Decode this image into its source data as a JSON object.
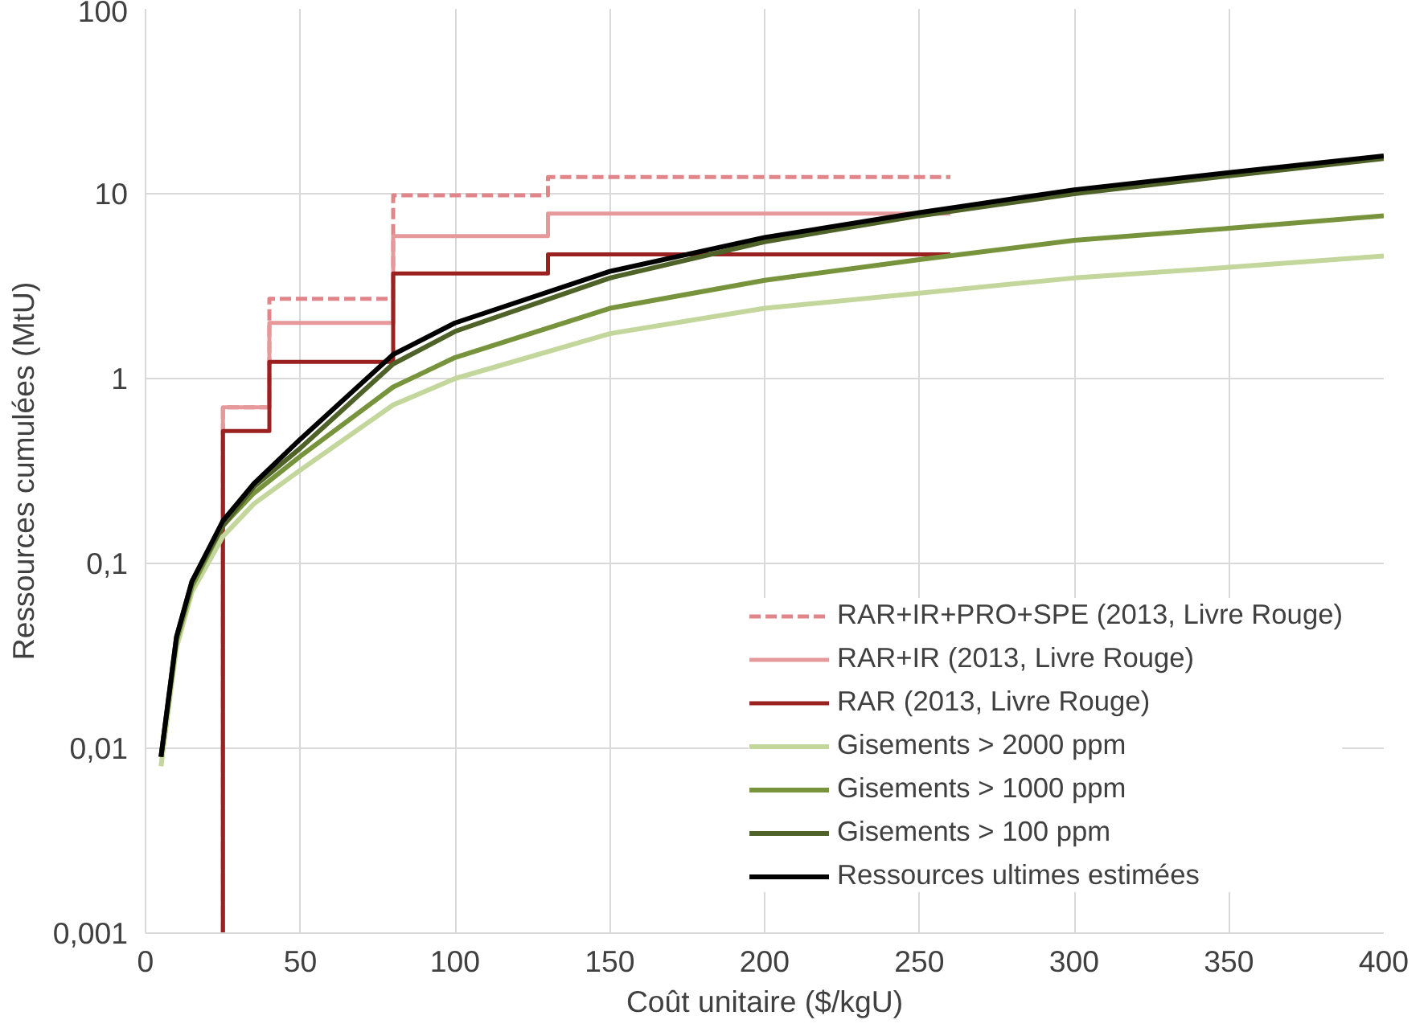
{
  "chart_data": {
    "type": "line",
    "xlabel": "Coût unitaire ($/kgU)",
    "ylabel": "Ressources cumulées (MtU)",
    "log": "y",
    "grid": true,
    "legend": "bottom right",
    "xlim": [
      0,
      400
    ],
    "xticks": [
      0,
      50,
      100,
      150,
      200,
      250,
      300,
      350,
      400
    ],
    "ylim": [
      0.001,
      100
    ],
    "yticks": [
      {
        "value": 0.001,
        "label": "0,001"
      },
      {
        "value": 0.01,
        "label": "0,01"
      },
      {
        "value": 0.1,
        "label": "0,1"
      },
      1,
      10,
      100
    ],
    "series": [
      {
        "name": "RAR+IR+PRO+SPE (2013, Livre Rouge)",
        "type": "step",
        "line_style": "dashed",
        "color": "#e0868a",
        "x": [
          25,
          25,
          40,
          80,
          130,
          260
        ],
        "values": [
          0.001,
          0.7,
          2.7,
          9.8,
          12.3,
          12.3
        ]
      },
      {
        "name": "RAR+IR (2013, Livre Rouge)",
        "type": "step",
        "color": "#e6999b",
        "x": [
          25,
          25,
          40,
          80,
          130,
          260
        ],
        "values": [
          0.001,
          0.7,
          2.0,
          5.9,
          7.8,
          7.8
        ]
      },
      {
        "name": "RAR (2013, Livre Rouge)",
        "type": "step",
        "color": "#9b2020",
        "x": [
          25,
          25,
          40,
          80,
          130,
          260
        ],
        "values": [
          0.001,
          0.52,
          1.23,
          3.7,
          4.7,
          4.7
        ]
      },
      {
        "name": "Gisements > 2000 ppm",
        "color": "#c3d69b",
        "x": [
          5,
          10,
          15,
          25,
          35,
          50,
          80,
          100,
          150,
          200,
          250,
          300,
          350,
          400
        ],
        "values": [
          0.008,
          0.035,
          0.07,
          0.14,
          0.21,
          0.32,
          0.72,
          1.0,
          1.75,
          2.4,
          2.9,
          3.5,
          4.0,
          4.6
        ]
      },
      {
        "name": "Gisements > 1000 ppm",
        "color": "#77933c",
        "x": [
          5,
          10,
          15,
          25,
          35,
          50,
          80,
          100,
          150,
          200,
          250,
          300,
          350,
          400
        ],
        "values": [
          0.009,
          0.038,
          0.075,
          0.16,
          0.24,
          0.38,
          0.9,
          1.3,
          2.4,
          3.4,
          4.4,
          5.6,
          6.5,
          7.6
        ]
      },
      {
        "name": "Gisements > 100 ppm",
        "color": "#4f6228",
        "x": [
          5,
          10,
          15,
          25,
          35,
          50,
          80,
          100,
          150,
          200,
          250,
          300,
          350,
          400
        ],
        "values": [
          0.009,
          0.04,
          0.08,
          0.16,
          0.26,
          0.42,
          1.2,
          1.8,
          3.5,
          5.5,
          7.6,
          10,
          12.5,
          15.5
        ]
      },
      {
        "name": "Ressources ultimes estimées",
        "color": "#000000",
        "x": [
          5,
          10,
          15,
          25,
          35,
          50,
          80,
          100,
          150,
          200,
          250,
          300,
          350,
          400
        ],
        "values": [
          0.009,
          0.04,
          0.08,
          0.17,
          0.27,
          0.47,
          1.35,
          2.0,
          3.8,
          5.8,
          7.9,
          10.5,
          13,
          16
        ]
      }
    ]
  }
}
